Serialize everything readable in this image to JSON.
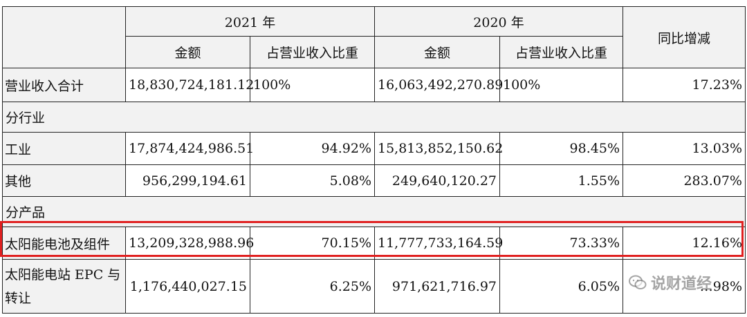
{
  "table": {
    "header": {
      "year_2021": "2021 年",
      "year_2020": "2020 年",
      "yoy": "同比增减",
      "amount": "金额",
      "ratio": "占营业收入比重"
    },
    "total": {
      "label": "营业收入合计",
      "amount_2021": "18,830,724,181.12",
      "ratio_2021": "100%",
      "amount_2020": "16,063,492,270.89",
      "ratio_2020": "100%",
      "yoy": "17.23%"
    },
    "section_industry": "分行业",
    "industry": [
      {
        "label": "工业",
        "amount_2021": "17,874,424,986.51",
        "ratio_2021": "94.92%",
        "amount_2020": "15,813,852,150.62",
        "ratio_2020": "98.45%",
        "yoy": "13.03%"
      },
      {
        "label": "其他",
        "amount_2021": "956,299,194.61",
        "ratio_2021": "5.08%",
        "amount_2020": "249,640,120.27",
        "ratio_2020": "1.55%",
        "yoy": "283.07%"
      }
    ],
    "section_product": "分产品",
    "product": [
      {
        "label": "太阳能电池及组件",
        "amount_2021": "13,209,328,988.96",
        "ratio_2021": "70.15%",
        "amount_2020": "11,777,733,164.59",
        "ratio_2020": "73.33%",
        "yoy": "12.16%"
      },
      {
        "label": "太阳能电站 EPC 与转让",
        "amount_2021": "1,176,440,027.15",
        "ratio_2021": "6.25%",
        "amount_2020": "971,621,716.97",
        "ratio_2020": "6.05%",
        "yoy": "…98%"
      }
    ]
  },
  "highlight_color": "#e02020",
  "watermark": {
    "icon": "wechat-icon",
    "text": "说财道经"
  }
}
